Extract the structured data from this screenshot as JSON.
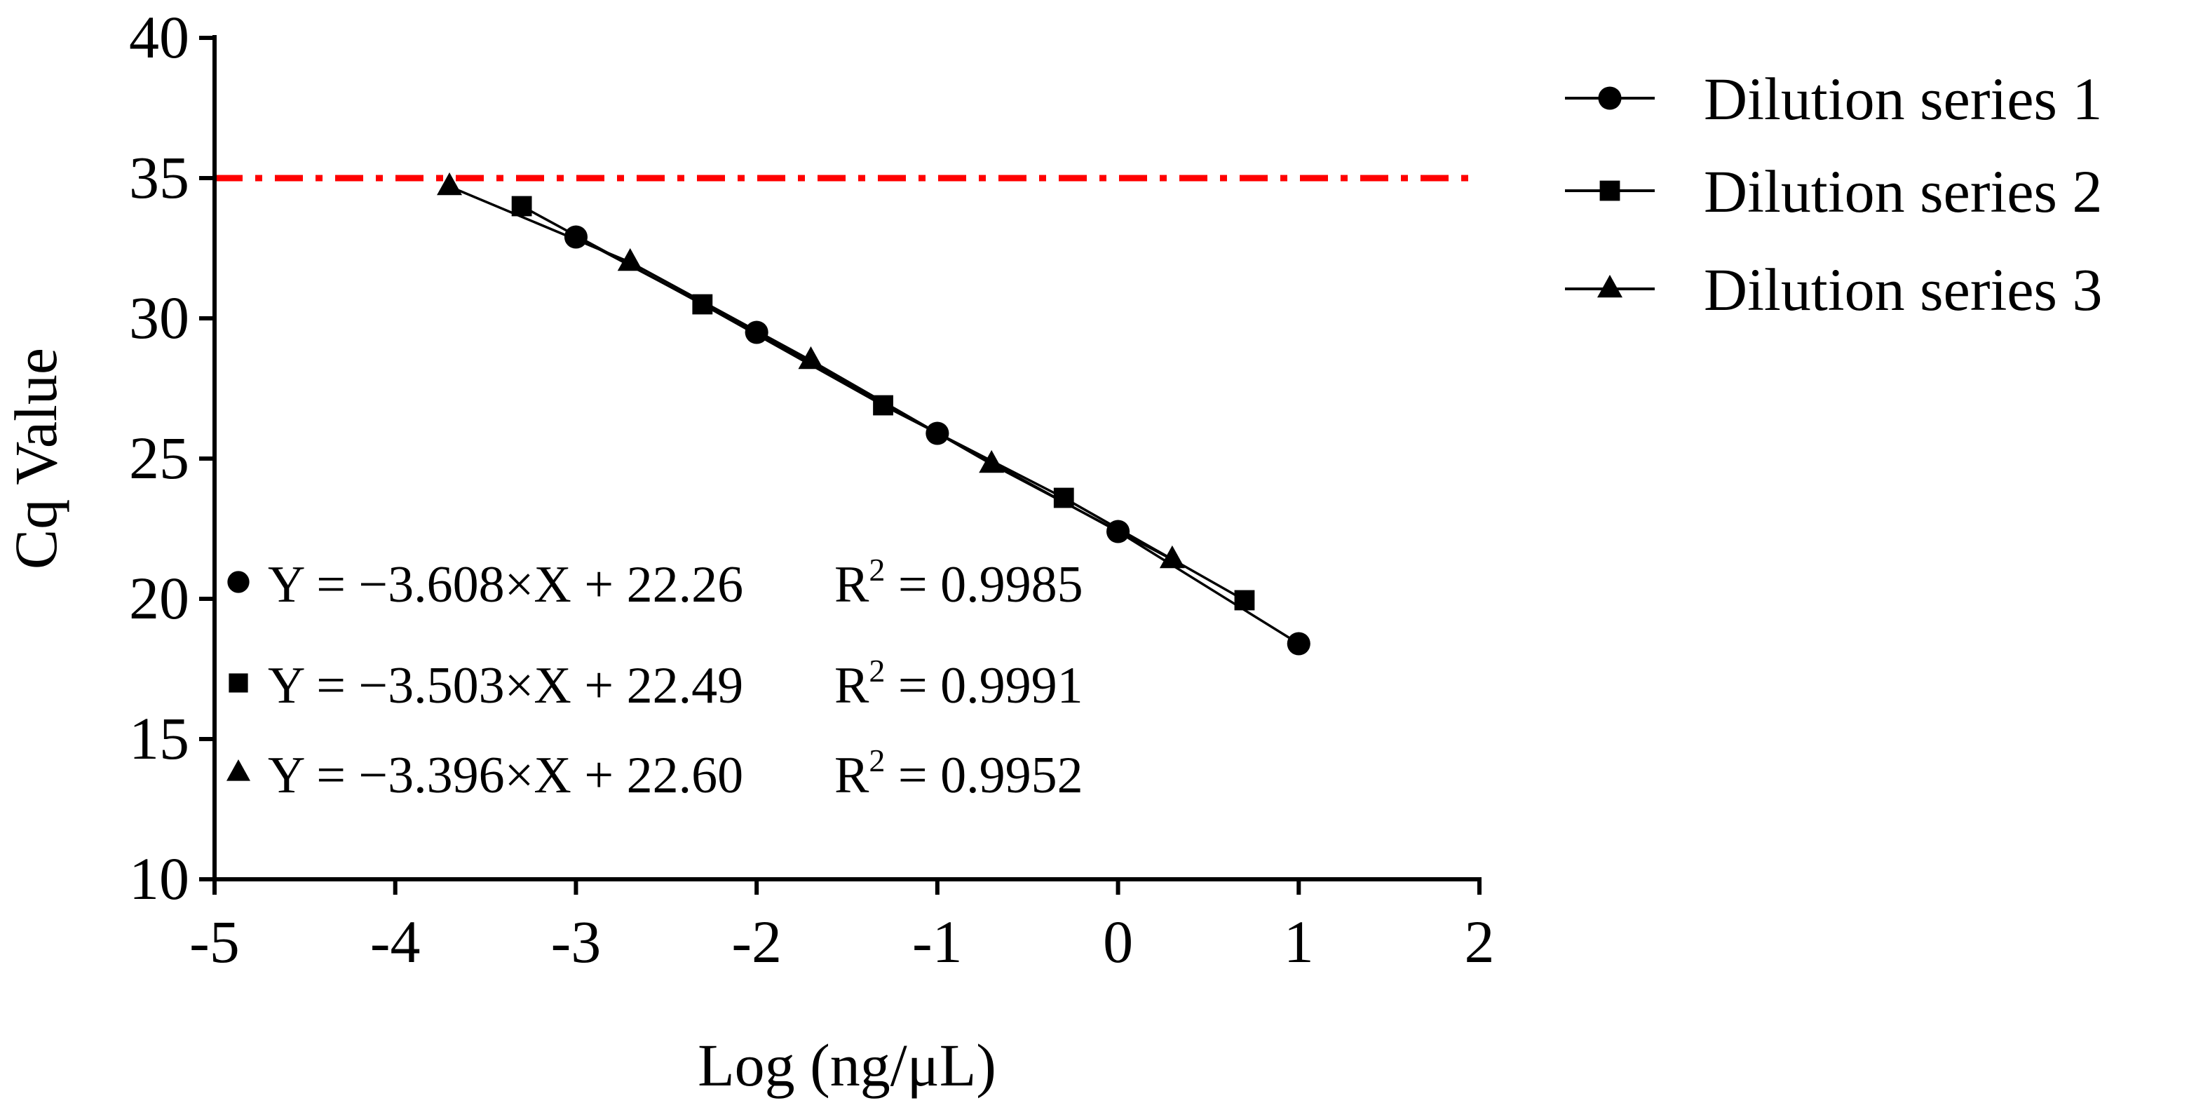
{
  "chart_data": {
    "type": "line",
    "xlabel": "Log (ng/μL)",
    "ylabel": "Cq Value",
    "xlim": [
      -5,
      2
    ],
    "ylim": [
      10,
      40
    ],
    "xticks": [
      -5,
      -4,
      -3,
      -2,
      -1,
      0,
      1,
      2
    ],
    "yticks": [
      10,
      15,
      20,
      25,
      30,
      35,
      40
    ],
    "x_tick_labels": [
      "-5",
      "-4",
      "-3",
      "-2",
      "-1",
      "0",
      "1",
      "2"
    ],
    "y_tick_labels": [
      "10",
      "15",
      "20",
      "25",
      "30",
      "35",
      "40"
    ],
    "threshold": {
      "y": 35,
      "color": "#ff0000",
      "style": "dash-dot"
    },
    "legend_position": "top-right, outside plot area",
    "series": [
      {
        "name": "Dilution series 1",
        "marker": "circle",
        "x": [
          -3,
          -2,
          -1,
          0,
          1
        ],
        "y": [
          32.9,
          29.5,
          25.9,
          22.4,
          18.4
        ],
        "equation": {
          "text": "Y = −3.608×X + 22.26",
          "r2_label": "R",
          "r2_sup": "2",
          "r2_value": "= 0.9985"
        }
      },
      {
        "name": "Dilution series 2",
        "marker": "square",
        "x": [
          -3.3,
          -2.3,
          -1.3,
          -0.3,
          0.7
        ],
        "y": [
          34.0,
          30.5,
          26.9,
          23.6,
          19.95
        ],
        "equation": {
          "text": "Y = −3.503×X + 22.49",
          "r2_label": "R",
          "r2_sup": "2",
          "r2_value": "= 0.9991"
        }
      },
      {
        "name": "Dilution series 3",
        "marker": "triangle",
        "x": [
          -3.7,
          -2.7,
          -1.7,
          -0.7,
          0.3
        ],
        "y": [
          34.7,
          32.0,
          28.5,
          24.8,
          21.4
        ],
        "equation": {
          "text": "Y = −3.396×X + 22.60",
          "r2_label": "R",
          "r2_sup": "2",
          "r2_value": "= 0.9952"
        }
      }
    ]
  }
}
